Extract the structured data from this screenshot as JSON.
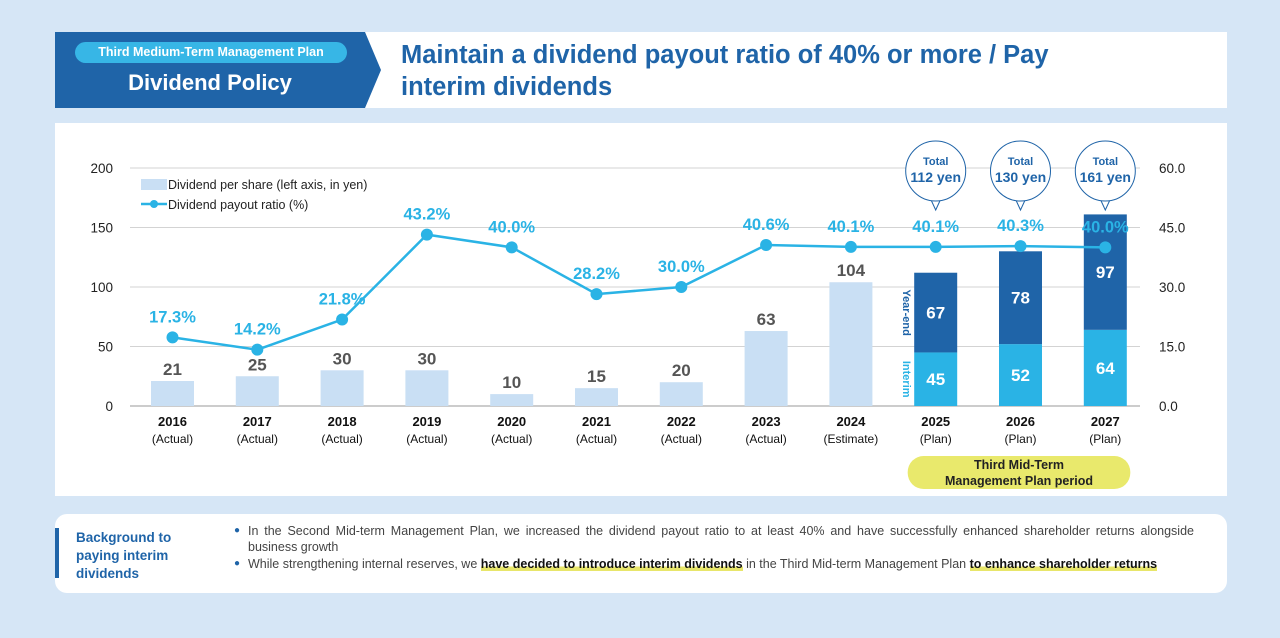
{
  "header": {
    "plan_label": "Third Medium-Term Management Plan",
    "section": "Dividend Policy",
    "title": "Maintain a dividend payout ratio of 40% or more / Pay interim dividends"
  },
  "chart_data": {
    "type": "bar+line",
    "categories": [
      "2016",
      "2017",
      "2018",
      "2019",
      "2020",
      "2021",
      "2022",
      "2023",
      "2024",
      "2025",
      "2026",
      "2027"
    ],
    "category_sublabels": [
      "(Actual)",
      "(Actual)",
      "(Actual)",
      "(Actual)",
      "(Actual)",
      "(Actual)",
      "(Actual)",
      "(Actual)",
      "(Estimate)",
      "(Plan)",
      "(Plan)",
      "(Plan)"
    ],
    "dividend_per_share": [
      21,
      25,
      30,
      30,
      10,
      15,
      20,
      63,
      104,
      null,
      null,
      null
    ],
    "interim": [
      null,
      null,
      null,
      null,
      null,
      null,
      null,
      null,
      null,
      45,
      52,
      64
    ],
    "year_end": [
      null,
      null,
      null,
      null,
      null,
      null,
      null,
      null,
      null,
      67,
      78,
      97
    ],
    "payout_ratio": [
      17.3,
      14.2,
      21.8,
      43.2,
      40.0,
      28.2,
      30.0,
      40.6,
      40.1,
      40.1,
      40.3,
      40.0
    ],
    "payout_labels": [
      "17.3%",
      "14.2%",
      "21.8%",
      "43.2%",
      "40.0%",
      "28.2%",
      "30.0%",
      "40.6%",
      "40.1%",
      "40.1%",
      "40.3%",
      "40.0%"
    ],
    "totals": [
      {
        "index": 9,
        "label": "Total",
        "value": "112 yen"
      },
      {
        "index": 10,
        "label": "Total",
        "value": "130 yen"
      },
      {
        "index": 11,
        "label": "Total",
        "value": "161 yen"
      }
    ],
    "left_axis": {
      "min": 0,
      "max": 200,
      "ticks": [
        "0",
        "50",
        "100",
        "150",
        "200"
      ]
    },
    "right_axis": {
      "min": 0,
      "max": 60,
      "ticks": [
        "0.0",
        "15.0",
        "30.0",
        "45.0",
        "60.0"
      ]
    },
    "legend": [
      "Dividend per share (left axis, in yen)",
      "Dividend payout ratio (%)"
    ],
    "stack_labels": {
      "year_end": "Year-end",
      "interim": "Interim"
    },
    "period_label": "Third Mid-Term Management Plan period",
    "colors": {
      "bar": "#c9dff4",
      "interim": "#2ab3e5",
      "year_end": "#1f64a8",
      "line": "#2ab3e5",
      "grid": "#d3d3d3",
      "period": "#e9e96c"
    }
  },
  "background": {
    "title": "Background to paying interim dividends",
    "bullet1": "In the Second Mid-term Management Plan, we increased the dividend payout ratio to at least 40% and have successfully enhanced shareholder returns alongside business growth",
    "bullet2_a": "While strengthening internal reserves, we ",
    "bullet2_b": "have decided to introduce interim dividends",
    "bullet2_c": " in the Third Mid-term Management Plan ",
    "bullet2_d": "to enhance shareholder returns"
  }
}
